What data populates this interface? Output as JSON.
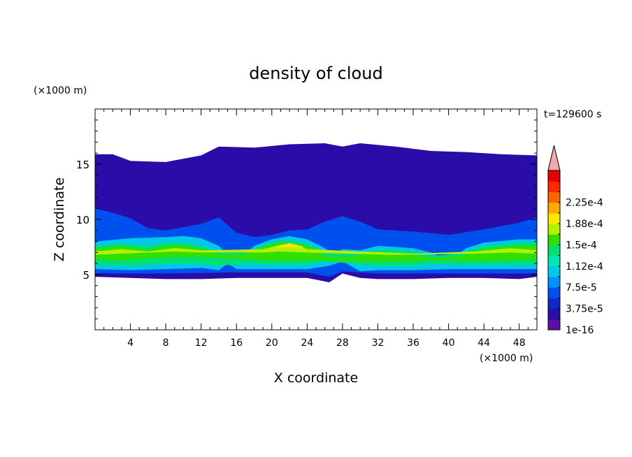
{
  "chart_data": {
    "type": "heatmap",
    "title": "density of cloud",
    "xlabel": "X coordinate",
    "ylabel": "Z coordinate",
    "x_unit": "(×1000 m)",
    "y_unit": "(×1000 m)",
    "time_label": "t=129600 s",
    "xlim": [
      0,
      50
    ],
    "ylim": [
      0,
      20
    ],
    "x_ticks": [
      "4",
      "8",
      "12",
      "16",
      "20",
      "24",
      "28",
      "32",
      "36",
      "40",
      "44",
      "48"
    ],
    "y_ticks": [
      "5",
      "10",
      "15"
    ],
    "colorbar": {
      "labels": [
        "1e-16",
        "3.75e-5",
        "7.5e-5",
        "1.12e-4",
        "1.5e-4",
        "1.88e-4",
        "2.25e-4"
      ],
      "colors": [
        "#5a0fa8",
        "#2a0da8",
        "#0e28c8",
        "#0050f0",
        "#0090ff",
        "#00c8e6",
        "#00e6b4",
        "#00e070",
        "#32e000",
        "#b4f000",
        "#ffe600",
        "#ffaa00",
        "#ff6400",
        "#ff2800",
        "#e60000"
      ],
      "extend_color": "#f4a8a8"
    },
    "layers": [
      {
        "level": 1,
        "value": "1e-16",
        "bottom": [
          [
            0,
            4.8
          ],
          [
            4,
            4.7
          ],
          [
            8,
            4.6
          ],
          [
            12,
            4.6
          ],
          [
            16,
            4.7
          ],
          [
            20,
            4.7
          ],
          [
            24,
            4.7
          ],
          [
            26.5,
            4.3
          ],
          [
            28,
            5.1
          ],
          [
            30,
            4.7
          ],
          [
            32,
            4.6
          ],
          [
            36,
            4.6
          ],
          [
            40,
            4.7
          ],
          [
            44,
            4.7
          ],
          [
            48,
            4.6
          ],
          [
            50,
            4.8
          ]
        ],
        "top": [
          [
            0,
            15.9
          ],
          [
            2,
            15.9
          ],
          [
            4,
            15.3
          ],
          [
            8,
            15.2
          ],
          [
            10,
            15.5
          ],
          [
            12,
            15.8
          ],
          [
            14,
            16.6
          ],
          [
            18,
            16.5
          ],
          [
            22,
            16.8
          ],
          [
            26,
            16.9
          ],
          [
            28,
            16.6
          ],
          [
            30,
            16.9
          ],
          [
            34,
            16.6
          ],
          [
            38,
            16.2
          ],
          [
            42,
            16.1
          ],
          [
            46,
            15.9
          ],
          [
            50,
            15.8
          ]
        ]
      },
      {
        "level": 3,
        "value": "3.75e-5",
        "bottom": [
          [
            0,
            5.1
          ],
          [
            8,
            5.1
          ],
          [
            16,
            5.2
          ],
          [
            24,
            5.2
          ],
          [
            26.5,
            4.8
          ],
          [
            28,
            5.3
          ],
          [
            32,
            5.1
          ],
          [
            40,
            5.1
          ],
          [
            50,
            5.1
          ]
        ],
        "top": [
          [
            0,
            11.0
          ],
          [
            2,
            10.6
          ],
          [
            4,
            10.1
          ],
          [
            6,
            9.2
          ],
          [
            8,
            9.0
          ],
          [
            12,
            9.6
          ],
          [
            14,
            10.2
          ],
          [
            16,
            8.8
          ],
          [
            18,
            8.4
          ],
          [
            20,
            8.6
          ],
          [
            22,
            9.0
          ],
          [
            24,
            9.1
          ],
          [
            26,
            9.8
          ],
          [
            28,
            10.3
          ],
          [
            30,
            9.8
          ],
          [
            32,
            9.1
          ],
          [
            36,
            8.9
          ],
          [
            40,
            8.6
          ],
          [
            44,
            9.1
          ],
          [
            48,
            9.7
          ],
          [
            50,
            10.2
          ]
        ]
      },
      {
        "level": 5,
        "value": "7.5e-5",
        "bottom": [
          [
            0,
            5.5
          ],
          [
            4,
            5.4
          ],
          [
            8,
            5.5
          ],
          [
            12,
            5.6
          ],
          [
            14,
            5.4
          ],
          [
            15,
            6.0
          ],
          [
            16,
            5.5
          ],
          [
            20,
            5.5
          ],
          [
            24,
            5.5
          ],
          [
            26.5,
            5.8
          ],
          [
            28,
            6.2
          ],
          [
            30,
            5.3
          ],
          [
            32,
            5.4
          ],
          [
            36,
            5.4
          ],
          [
            40,
            5.5
          ],
          [
            44,
            5.5
          ],
          [
            50,
            5.5
          ]
        ],
        "top": [
          [
            0,
            8.0
          ],
          [
            4,
            8.3
          ],
          [
            8,
            8.4
          ],
          [
            10,
            8.5
          ],
          [
            12,
            8.3
          ],
          [
            14,
            7.6
          ],
          [
            15,
            6.8
          ],
          [
            16,
            6.2
          ],
          [
            18,
            7.6
          ],
          [
            20,
            8.2
          ],
          [
            22,
            8.5
          ],
          [
            24,
            8.2
          ],
          [
            26,
            7.4
          ],
          [
            27,
            6.8
          ],
          [
            28,
            7.3
          ],
          [
            30,
            7.2
          ],
          [
            32,
            7.6
          ],
          [
            36,
            7.4
          ],
          [
            38,
            7.0
          ],
          [
            40,
            6.2
          ],
          [
            42,
            7.4
          ],
          [
            44,
            7.9
          ],
          [
            48,
            8.2
          ],
          [
            50,
            8.2
          ]
        ]
      },
      {
        "level": 7,
        "value": "1.12e-4",
        "bottom": [
          [
            0,
            5.9
          ],
          [
            4,
            5.8
          ],
          [
            8,
            6.0
          ],
          [
            12,
            6.0
          ],
          [
            14,
            5.8
          ],
          [
            17,
            6.0
          ],
          [
            20,
            5.9
          ],
          [
            24,
            5.9
          ],
          [
            26,
            6.2
          ],
          [
            29,
            6.0
          ],
          [
            32,
            5.8
          ],
          [
            36,
            5.8
          ],
          [
            38,
            6.0
          ],
          [
            41,
            5.9
          ],
          [
            44,
            5.9
          ],
          [
            50,
            5.9
          ]
        ],
        "top": [
          [
            0,
            7.6
          ],
          [
            3,
            7.8
          ],
          [
            6,
            7.6
          ],
          [
            8,
            7.9
          ],
          [
            10,
            7.9
          ],
          [
            12,
            7.6
          ],
          [
            14,
            7.0
          ],
          [
            17,
            7.0
          ],
          [
            19,
            7.7
          ],
          [
            21,
            8.1
          ],
          [
            23,
            8.0
          ],
          [
            25,
            7.5
          ],
          [
            26,
            7.0
          ],
          [
            29,
            7.0
          ],
          [
            31,
            7.1
          ],
          [
            33,
            7.3
          ],
          [
            36,
            7.1
          ],
          [
            38,
            6.7
          ],
          [
            41,
            6.9
          ],
          [
            44,
            7.6
          ],
          [
            48,
            7.9
          ],
          [
            50,
            7.9
          ]
        ]
      },
      {
        "level": 8,
        "value": "1.3e-4",
        "bottom": [
          [
            0,
            6.4
          ],
          [
            3,
            6.3
          ],
          [
            6,
            6.5
          ],
          [
            10,
            6.6
          ],
          [
            12,
            6.6
          ],
          [
            17,
            6.4
          ],
          [
            20,
            6.3
          ],
          [
            25,
            6.3
          ],
          [
            30,
            6.2
          ],
          [
            34,
            6.2
          ],
          [
            38,
            6.3
          ],
          [
            42,
            6.3
          ],
          [
            46,
            6.3
          ],
          [
            50,
            6.4
          ]
        ],
        "top": [
          [
            0,
            7.3
          ],
          [
            3,
            7.6
          ],
          [
            6,
            7.2
          ],
          [
            8,
            7.6
          ],
          [
            10,
            7.6
          ],
          [
            12,
            7.3
          ],
          [
            14,
            6.8
          ],
          [
            17,
            6.8
          ],
          [
            19,
            7.5
          ],
          [
            21,
            7.9
          ],
          [
            23,
            7.8
          ],
          [
            25,
            7.3
          ],
          [
            26,
            6.6
          ],
          [
            29,
            6.6
          ],
          [
            31,
            6.9
          ],
          [
            33,
            7.0
          ],
          [
            36,
            6.8
          ],
          [
            38,
            6.5
          ],
          [
            41,
            6.6
          ],
          [
            44,
            7.3
          ],
          [
            48,
            7.6
          ],
          [
            50,
            7.6
          ]
        ]
      },
      {
        "level": 9,
        "value": "1.5e-4",
        "bottom": [
          [
            0,
            6.8
          ],
          [
            3,
            6.9
          ],
          [
            6,
            7.0
          ],
          [
            9,
            7.1
          ],
          [
            12,
            7.0
          ],
          [
            19,
            7.0
          ],
          [
            21,
            7.1
          ],
          [
            24,
            7.0
          ],
          [
            33,
            6.8
          ],
          [
            36,
            6.8
          ],
          [
            43,
            6.9
          ],
          [
            47,
            7.0
          ],
          [
            50,
            6.9
          ]
        ],
        "top": [
          [
            0,
            7.1
          ],
          [
            3,
            7.3
          ],
          [
            6,
            7.1
          ],
          [
            9,
            7.4
          ],
          [
            12,
            7.2
          ],
          [
            19,
            7.3
          ],
          [
            21,
            7.7
          ],
          [
            23,
            7.6
          ],
          [
            24,
            7.3
          ],
          [
            33,
            7.0
          ],
          [
            36,
            6.9
          ],
          [
            43,
            7.1
          ],
          [
            47,
            7.4
          ],
          [
            50,
            7.2
          ]
        ]
      },
      {
        "level": 10,
        "value": "1.7e-4",
        "bottom": [
          [
            20.5,
            7.45
          ],
          [
            22,
            7.5
          ],
          [
            23.5,
            7.45
          ]
        ],
        "top": [
          [
            20.5,
            7.55
          ],
          [
            22,
            7.85
          ],
          [
            23.5,
            7.55
          ]
        ]
      }
    ]
  }
}
